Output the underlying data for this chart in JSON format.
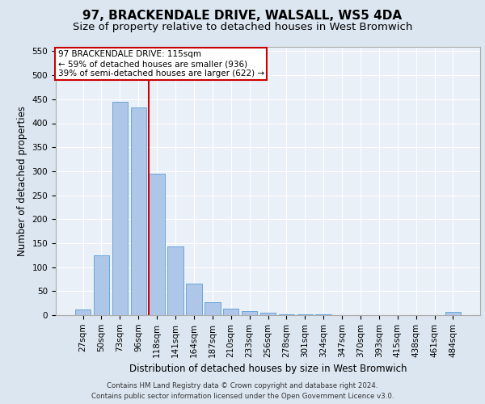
{
  "title": "97, BRACKENDALE DRIVE, WALSALL, WS5 4DA",
  "subtitle": "Size of property relative to detached houses in West Bromwich",
  "xlabel": "Distribution of detached houses by size in West Bromwich",
  "ylabel": "Number of detached properties",
  "footer_line1": "Contains HM Land Registry data © Crown copyright and database right 2024.",
  "footer_line2": "Contains public sector information licensed under the Open Government Licence v3.0.",
  "categories": [
    "27sqm",
    "50sqm",
    "73sqm",
    "96sqm",
    "118sqm",
    "141sqm",
    "164sqm",
    "187sqm",
    "210sqm",
    "233sqm",
    "256sqm",
    "278sqm",
    "301sqm",
    "324sqm",
    "347sqm",
    "370sqm",
    "393sqm",
    "415sqm",
    "438sqm",
    "461sqm",
    "484sqm"
  ],
  "values": [
    12,
    125,
    445,
    433,
    294,
    144,
    66,
    27,
    14,
    8,
    5,
    2,
    1,
    1,
    0,
    0,
    0,
    0,
    0,
    0,
    6
  ],
  "bar_color": "#aec6e8",
  "bar_edge_color": "#5a9fd4",
  "vline_color": "#cc0000",
  "annotation_text": "97 BRACKENDALE DRIVE: 115sqm\n← 59% of detached houses are smaller (936)\n39% of semi-detached houses are larger (622) →",
  "annotation_box_color": "#ffffff",
  "annotation_box_edge_color": "#cc0000",
  "ylim": [
    0,
    560
  ],
  "yticks": [
    0,
    50,
    100,
    150,
    200,
    250,
    300,
    350,
    400,
    450,
    500,
    550
  ],
  "background_color": "#dce6f0",
  "plot_background": "#eaf0f8",
  "grid_color": "#ffffff",
  "title_fontsize": 11,
  "subtitle_fontsize": 9.5,
  "xlabel_fontsize": 8.5,
  "ylabel_fontsize": 8.5,
  "tick_fontsize": 7.5,
  "footer_fontsize": 6.2
}
